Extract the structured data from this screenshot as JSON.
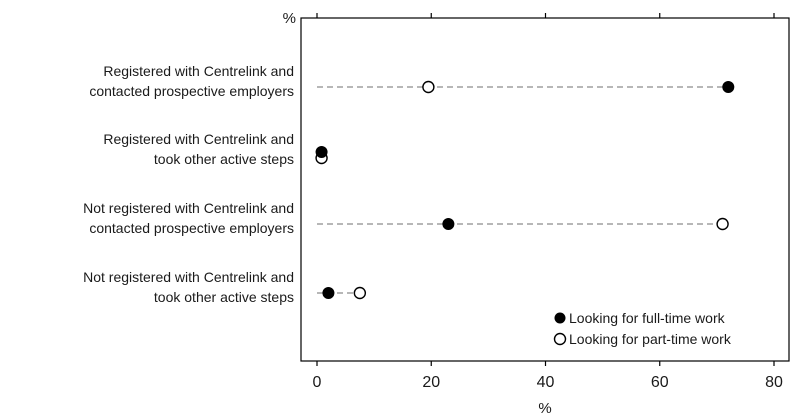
{
  "chart_data": {
    "type": "scatter",
    "categories": [
      [
        "Registered with Centrelink and",
        "contacted prospective employers"
      ],
      [
        "Registered with Centrelink and",
        "took other active steps"
      ],
      [
        "Not registered with Centrelink and",
        "contacted prospective employers"
      ],
      [
        "Not registered with Centrelink and",
        "took other active steps"
      ]
    ],
    "series": [
      {
        "name": "Looking for full-time work",
        "marker": "filled-circle",
        "values": [
          72,
          0.8,
          23,
          2
        ]
      },
      {
        "name": "Looking for part-time work",
        "marker": "open-circle",
        "values": [
          19.5,
          0.8,
          71,
          7.5
        ]
      }
    ],
    "x_ticks": [
      0,
      20,
      40,
      60,
      80
    ],
    "x_tick_labels": [
      "0",
      "20",
      "40",
      "60",
      "80"
    ],
    "xlim": [
      -2,
      80
    ],
    "top_unit_label": "%",
    "xlabel": "%",
    "legend_position": "bottom-right",
    "connector_style": "dashed",
    "colors": {
      "marker": "#000000",
      "connector": "#8c8c8c",
      "axis": "#000000"
    }
  }
}
